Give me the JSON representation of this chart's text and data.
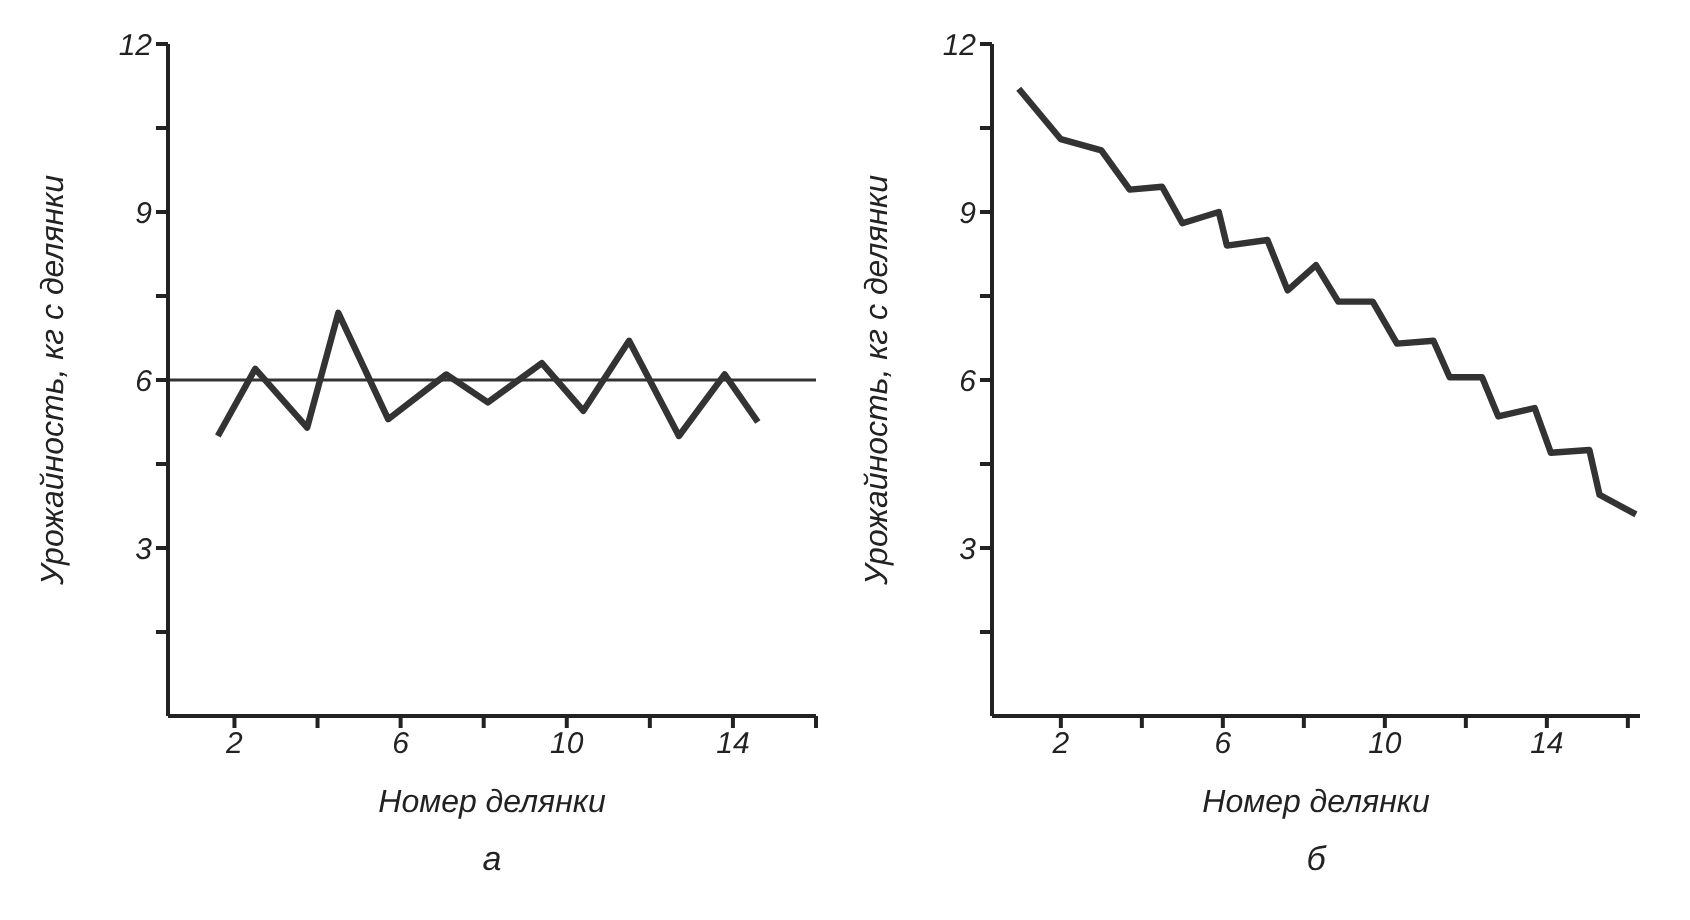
{
  "chart_data": [
    {
      "type": "line",
      "xlabel": "Номер делянки",
      "ylabel": "Урожайность, кг с делянки",
      "annotations": [
        "а"
      ],
      "xlim": [
        0.4,
        16
      ],
      "ylim": [
        0,
        12
      ],
      "xticks": [
        2,
        {
          "value": 4,
          "label": null
        },
        6,
        {
          "value": 8,
          "label": null
        },
        10,
        {
          "value": 12,
          "label": null
        },
        14,
        {
          "value": 16,
          "label": null
        }
      ],
      "yticks": [
        {
          "value": 1.5,
          "label": null
        },
        3,
        {
          "value": 4.5,
          "label": null
        },
        6,
        {
          "value": 7.5,
          "label": null
        },
        9,
        {
          "value": 10.5,
          "label": null
        },
        12
      ],
      "grid": false,
      "legend": false,
      "marker": "none",
      "line_style": "solid",
      "ref_lines": [
        {
          "axis": "y",
          "value": 6,
          "color": "#333333"
        }
      ],
      "series": [
        {
          "color": "#333333",
          "x": [
            1.6,
            2.5,
            3.75,
            4.5,
            5.7,
            7.1,
            8.1,
            9.4,
            10.4,
            11.5,
            12.7,
            13.8,
            14.6
          ],
          "values": [
            5.0,
            6.2,
            5.15,
            7.2,
            5.3,
            6.1,
            5.6,
            6.3,
            5.45,
            6.7,
            5.0,
            6.1,
            5.25
          ]
        }
      ]
    },
    {
      "type": "line",
      "xlabel": "Номер делянки",
      "ylabel": "Урожайность, кг с делянки",
      "annotations": [
        "б"
      ],
      "xlim": [
        0.3,
        16.3
      ],
      "ylim": [
        0,
        12
      ],
      "xticks": [
        2,
        {
          "value": 4,
          "label": null
        },
        6,
        {
          "value": 8,
          "label": null
        },
        10,
        {
          "value": 12,
          "label": null
        },
        14,
        {
          "value": 16,
          "label": null
        }
      ],
      "yticks": [
        {
          "value": 1.5,
          "label": null
        },
        3,
        {
          "value": 4.5,
          "label": null
        },
        6,
        {
          "value": 7.5,
          "label": null
        },
        9,
        {
          "value": 10.5,
          "label": null
        },
        12
      ],
      "grid": false,
      "legend": false,
      "marker": "none",
      "line_style": "solid",
      "series": [
        {
          "color": "#333333",
          "x": [
            0.96,
            2.0,
            3.0,
            3.7,
            4.5,
            5.0,
            5.9,
            6.1,
            7.1,
            7.6,
            8.3,
            8.85,
            9.7,
            10.3,
            11.2,
            11.6,
            12.4,
            12.8,
            13.7,
            14.1,
            15.05,
            15.3,
            16.2
          ],
          "values": [
            11.2,
            10.3,
            10.1,
            9.4,
            9.45,
            8.8,
            9.0,
            8.4,
            8.5,
            7.6,
            8.05,
            7.4,
            7.4,
            6.65,
            6.7,
            6.05,
            6.05,
            5.35,
            5.5,
            4.7,
            4.75,
            3.95,
            3.6
          ]
        }
      ]
    }
  ]
}
